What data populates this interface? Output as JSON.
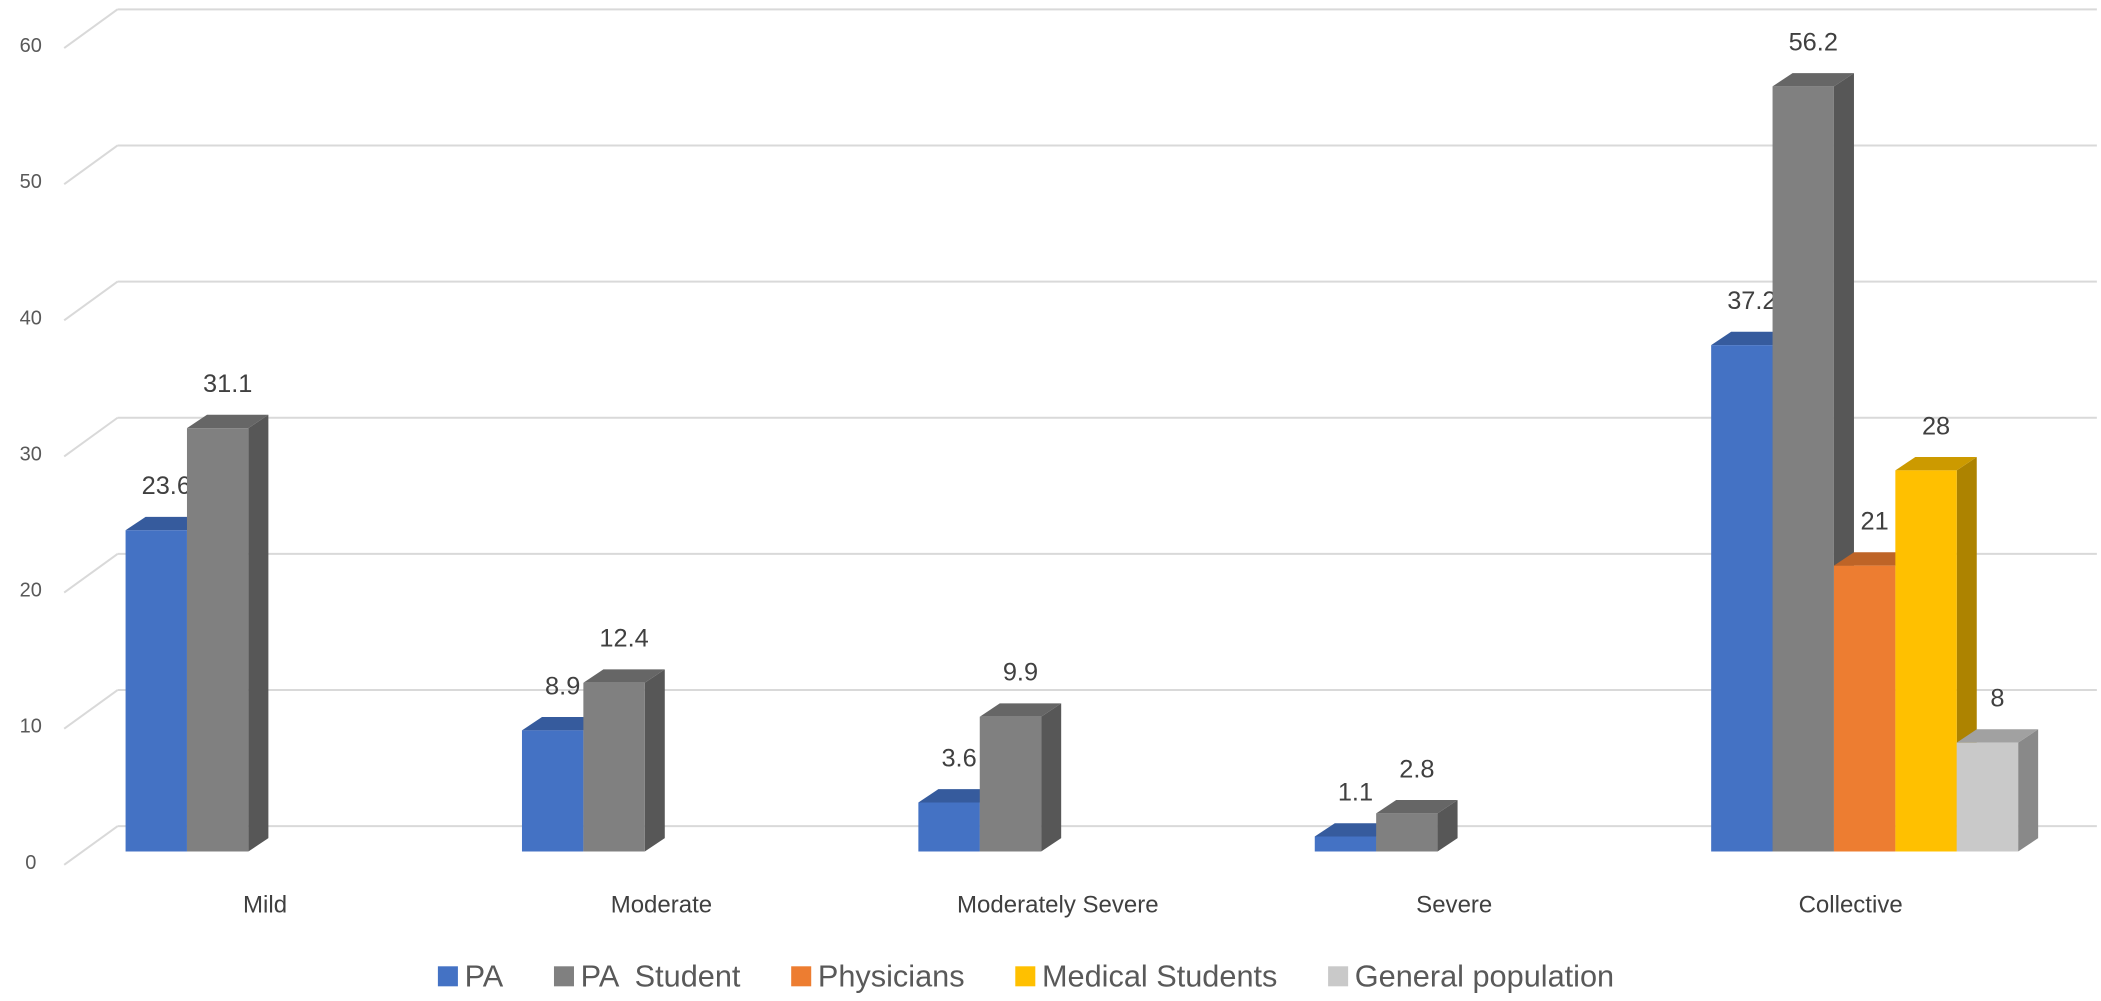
{
  "chart_data": {
    "type": "bar3d",
    "categories": [
      "Mild",
      "Moderate",
      "Moderately Severe",
      "Severe",
      "Collective"
    ],
    "series": [
      {
        "name": "PA",
        "color": "#4472c4",
        "values": [
          23.6,
          8.9,
          3.6,
          1.1,
          37.2
        ]
      },
      {
        "name": "PA  Student",
        "color": "#808080",
        "values": [
          31.1,
          12.4,
          9.9,
          2.8,
          56.2
        ]
      },
      {
        "name": "Physicians",
        "color": "#ed7d31",
        "values": [
          null,
          null,
          null,
          null,
          21
        ]
      },
      {
        "name": "Medical Students",
        "color": "#ffc000",
        "values": [
          null,
          null,
          null,
          null,
          28
        ]
      },
      {
        "name": "General population",
        "color": "#c9c9c9",
        "values": [
          null,
          null,
          null,
          null,
          8
        ]
      }
    ],
    "ylim": [
      0,
      60
    ],
    "yticks": [
      0,
      10,
      20,
      30,
      40,
      50,
      60
    ],
    "grid": true,
    "legend": "bottom"
  }
}
